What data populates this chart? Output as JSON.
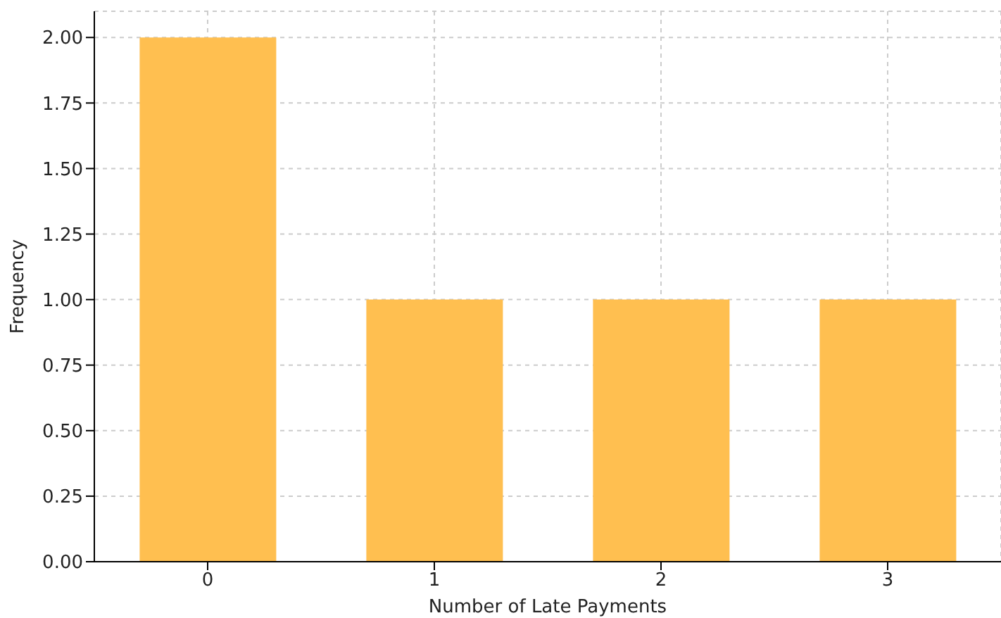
{
  "chart_data": {
    "type": "bar",
    "xlabel": "Number of Late Payments",
    "ylabel": "Frequency",
    "categories": [
      "0",
      "1",
      "2",
      "3"
    ],
    "values": [
      2,
      1,
      1,
      1
    ],
    "color": "#ffbf50",
    "ylim": [
      0,
      2.1
    ],
    "yticks": [
      {
        "value": 0,
        "label": "0.00"
      },
      {
        "value": 0.25,
        "label": "0.25"
      },
      {
        "value": 0.5,
        "label": "0.50"
      },
      {
        "value": 0.75,
        "label": "0.75"
      },
      {
        "value": 1,
        "label": "1.00"
      },
      {
        "value": 1.25,
        "label": "1.25"
      },
      {
        "value": 1.5,
        "label": "1.50"
      },
      {
        "value": 1.75,
        "label": "1.75"
      },
      {
        "value": 2,
        "label": "2.00"
      }
    ],
    "grid": true,
    "legend": false
  }
}
